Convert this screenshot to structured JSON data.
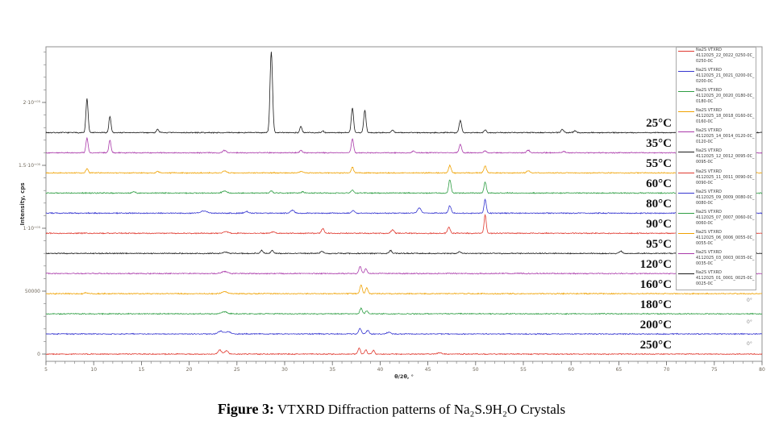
{
  "caption": {
    "prefix": "Figure 3:",
    "text": " VTXRD Diffraction patterns of  Na₂S.9H₂O Crystals"
  },
  "chart_data": {
    "type": "line",
    "title": "",
    "xlabel": "θ/2θ, °",
    "ylabel": "Intensity, cps",
    "xlim": [
      5,
      80
    ],
    "ylim": [
      0,
      245000
    ],
    "grid": false,
    "legend_position": "upper right",
    "x_major_tick_step": 5,
    "x_minor_tick_step": 1,
    "x_tick_labels": [
      "5",
      "10",
      "15",
      "20",
      "25",
      "30",
      "35",
      "40",
      "45",
      "50",
      "55",
      "60",
      "65",
      "70",
      "75",
      "80"
    ],
    "y_minor_tick_step": 10000,
    "y_ticks": [
      {
        "cps": 0,
        "label": "0"
      },
      {
        "cps": 50000,
        "label": "50000"
      },
      {
        "cps": 100000,
        "label": "1·10⁺⁰⁵"
      },
      {
        "cps": 150000,
        "label": "1.5·10⁺⁰⁵"
      },
      {
        "cps": 200000,
        "label": "2·10⁺⁰⁵"
      }
    ],
    "series_note": "stacked XRD scans; baseline_cps = vertical offset; peaks = [two_theta_deg, height_cps, sigma_deg]",
    "series": [
      {
        "id": "25C",
        "temperature_label": "25°C",
        "color": "#1a1a1a",
        "baseline_cps": 176000,
        "noise_cps": 500,
        "peaks": [
          [
            9.3,
            27000,
            0.11
          ],
          [
            11.7,
            13000,
            0.11
          ],
          [
            16.7,
            3000,
            0.11
          ],
          [
            28.6,
            64000,
            0.13
          ],
          [
            31.7,
            5000,
            0.11
          ],
          [
            34.0,
            1500,
            0.11
          ],
          [
            37.1,
            19500,
            0.12
          ],
          [
            38.4,
            18000,
            0.12
          ],
          [
            41.3,
            2000,
            0.12
          ],
          [
            48.4,
            9500,
            0.13
          ],
          [
            51.0,
            2200,
            0.12
          ],
          [
            59.1,
            2500,
            0.14
          ],
          [
            60.4,
            1500,
            0.14
          ]
        ]
      },
      {
        "id": "35C",
        "temperature_label": "35°C",
        "color": "#aa3aaa",
        "baseline_cps": 160000,
        "noise_cps": 500,
        "peaks": [
          [
            9.3,
            11500,
            0.11
          ],
          [
            11.7,
            10000,
            0.11
          ],
          [
            23.7,
            1800,
            0.2
          ],
          [
            31.7,
            1800,
            0.14
          ],
          [
            37.1,
            11000,
            0.12
          ],
          [
            43.5,
            1200,
            0.15
          ],
          [
            48.4,
            6500,
            0.13
          ],
          [
            51.0,
            1500,
            0.13
          ],
          [
            55.5,
            2200,
            0.15
          ],
          [
            59.2,
            1200,
            0.15
          ]
        ]
      },
      {
        "id": "55C",
        "temperature_label": "55°C",
        "color": "#f0a202",
        "baseline_cps": 144000,
        "noise_cps": 500,
        "peaks": [
          [
            9.3,
            3500,
            0.12
          ],
          [
            16.7,
            1200,
            0.15
          ],
          [
            23.7,
            1500,
            0.2
          ],
          [
            31.7,
            1200,
            0.15
          ],
          [
            37.1,
            4500,
            0.12
          ],
          [
            47.3,
            5800,
            0.13
          ],
          [
            51.0,
            5800,
            0.13
          ],
          [
            55.5,
            1800,
            0.15
          ]
        ]
      },
      {
        "id": "60C",
        "temperature_label": "60°C",
        "color": "#2f9e44",
        "baseline_cps": 128000,
        "noise_cps": 500,
        "peaks": [
          [
            14.2,
            1200,
            0.15
          ],
          [
            23.7,
            1800,
            0.22
          ],
          [
            28.6,
            1800,
            0.15
          ],
          [
            31.9,
            1000,
            0.15
          ],
          [
            37.1,
            2400,
            0.13
          ],
          [
            47.3,
            10500,
            0.12
          ],
          [
            51.0,
            8800,
            0.12
          ]
        ]
      },
      {
        "id": "80C",
        "temperature_label": "80°C",
        "color": "#3535d0",
        "baseline_cps": 112000,
        "noise_cps": 500,
        "peaks": [
          [
            21.5,
            1800,
            0.3
          ],
          [
            26.0,
            1300,
            0.2
          ],
          [
            30.8,
            2300,
            0.2
          ],
          [
            37.2,
            2000,
            0.15
          ],
          [
            44.1,
            4200,
            0.18
          ],
          [
            47.3,
            5800,
            0.14
          ],
          [
            51.0,
            10800,
            0.12
          ]
        ]
      },
      {
        "id": "90C",
        "temperature_label": "90°C",
        "color": "#e0392f",
        "baseline_cps": 96000,
        "noise_cps": 500,
        "peaks": [
          [
            23.8,
            1400,
            0.25
          ],
          [
            28.8,
            1100,
            0.2
          ],
          [
            34.0,
            3800,
            0.14
          ],
          [
            41.3,
            2800,
            0.16
          ],
          [
            47.2,
            4800,
            0.14
          ],
          [
            51.0,
            14800,
            0.11
          ]
        ]
      },
      {
        "id": "95C",
        "temperature_label": "95°C",
        "color": "#1a1a1a",
        "baseline_cps": 80000,
        "noise_cps": 500,
        "peaks": [
          [
            23.8,
            1100,
            0.25
          ],
          [
            27.6,
            2300,
            0.13
          ],
          [
            28.7,
            2300,
            0.13
          ],
          [
            33.9,
            1700,
            0.14
          ],
          [
            41.1,
            2300,
            0.14
          ],
          [
            48.3,
            1300,
            0.14
          ],
          [
            65.2,
            1800,
            0.16
          ]
        ]
      },
      {
        "id": "120C",
        "temperature_label": "120°C",
        "color": "#aa3aaa",
        "baseline_cps": 64000,
        "noise_cps": 500,
        "peaks": [
          [
            23.7,
            1600,
            0.3
          ],
          [
            37.9,
            5800,
            0.13
          ],
          [
            38.5,
            3800,
            0.13
          ]
        ]
      },
      {
        "id": "160C",
        "temperature_label": "160°C",
        "color": "#f0a202",
        "baseline_cps": 48000,
        "noise_cps": 500,
        "peaks": [
          [
            9.2,
            700,
            0.15
          ],
          [
            23.7,
            1600,
            0.3
          ],
          [
            38.0,
            6800,
            0.12
          ],
          [
            38.6,
            4800,
            0.12
          ]
        ]
      },
      {
        "id": "180C",
        "temperature_label": "180°C",
        "color": "#2f9e44",
        "baseline_cps": 32000,
        "noise_cps": 500,
        "peaks": [
          [
            23.7,
            1600,
            0.3
          ],
          [
            38.0,
            4300,
            0.13
          ],
          [
            38.6,
            2300,
            0.13
          ]
        ]
      },
      {
        "id": "200C",
        "temperature_label": "200°C",
        "color": "#3535d0",
        "baseline_cps": 16000,
        "noise_cps": 500,
        "peaks": [
          [
            23.3,
            2300,
            0.25
          ],
          [
            24.1,
            1800,
            0.25
          ],
          [
            37.9,
            4300,
            0.14
          ],
          [
            38.7,
            2800,
            0.14
          ],
          [
            40.9,
            1300,
            0.2
          ]
        ]
      },
      {
        "id": "250C",
        "temperature_label": "250°C",
        "color": "#e0392f",
        "baseline_cps": 0,
        "noise_cps": 500,
        "peaks": [
          [
            23.2,
            3300,
            0.18
          ],
          [
            23.9,
            2800,
            0.18
          ],
          [
            37.8,
            4800,
            0.12
          ],
          [
            38.5,
            3300,
            0.12
          ],
          [
            39.3,
            2800,
            0.12
          ],
          [
            46.2,
            1100,
            0.2
          ]
        ]
      }
    ],
    "annotations": [
      {
        "text": "0°"
      },
      {
        "text": "0°"
      },
      {
        "text": "0°"
      }
    ]
  },
  "legend": {
    "items": [
      {
        "name": "Na2S VTXRD",
        "file": "4112025_22_0022_0250-0C_0250-0C",
        "color": "#e0392f"
      },
      {
        "name": "Na2S VTXRD",
        "file": "4112025_21_0021_0200-0C_0200-0C",
        "color": "#3535d0"
      },
      {
        "name": "Na2S VTXRD",
        "file": "4112025_20_0020_0180-0C_0180-0C",
        "color": "#2f9e44"
      },
      {
        "name": "Na2S VTXRD",
        "file": "4112025_18_0018_0160-0C_0160-0C",
        "color": "#f0a202"
      },
      {
        "name": "Na2S VTXRD",
        "file": "4112025_14_0014_0120-0C_0120-0C",
        "color": "#aa3aaa"
      },
      {
        "name": "Na2S VTXRD",
        "file": "4112025_12_0012_0095-0C_0095-0C",
        "color": "#1a1a1a"
      },
      {
        "name": "Na2S VTXRD",
        "file": "4112025_11_0011_0090-0C_0090-0C",
        "color": "#e0392f"
      },
      {
        "name": "Na2S VTXRD",
        "file": "4112025_09_0009_0080-0C_0080-0C",
        "color": "#3535d0"
      },
      {
        "name": "Na2S VTXRD",
        "file": "4112025_07_0007_0060-0C_0060-0C",
        "color": "#2f9e44"
      },
      {
        "name": "Na2S VTXRD",
        "file": "4112025_06_0006_0055-0C_0055-0C",
        "color": "#f0a202"
      },
      {
        "name": "Na2S VTXRD",
        "file": "4112025_03_0003_0035-0C_0035-0C",
        "color": "#aa3aaa"
      },
      {
        "name": "Na2S VTXRD",
        "file": "4112025_01_0001_0025-0C_0025-0C",
        "color": "#1a1a1a"
      }
    ]
  }
}
